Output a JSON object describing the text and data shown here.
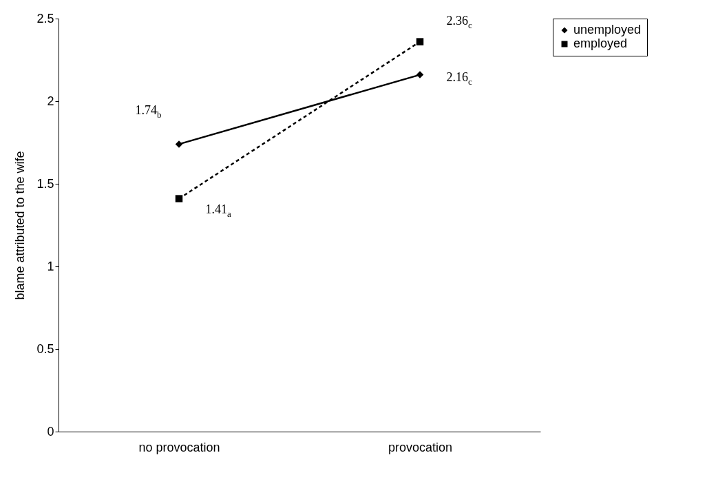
{
  "chart_data": {
    "type": "line",
    "ylabel": "blame attributed to the wife",
    "categories": [
      "no provocation",
      "provocation"
    ],
    "series": [
      {
        "name": "unemployed",
        "color": "#000000",
        "marker": "diamond",
        "line_style": "solid",
        "values": [
          1.74,
          2.16
        ],
        "value_labels": [
          "1.74$_{b}$",
          "2.16$_{c}$"
        ]
      },
      {
        "name": "employed",
        "color": "#000000",
        "marker": "square",
        "line_style": "dashed",
        "values": [
          1.41,
          2.36
        ],
        "value_labels": [
          "1.41$_{a}$",
          "2.36$_{c}$"
        ]
      }
    ],
    "ylim": [
      0,
      2.5
    ],
    "yticks": [
      0,
      0.5,
      1,
      1.5,
      2,
      2.5
    ],
    "grid": false,
    "legend": "right"
  }
}
